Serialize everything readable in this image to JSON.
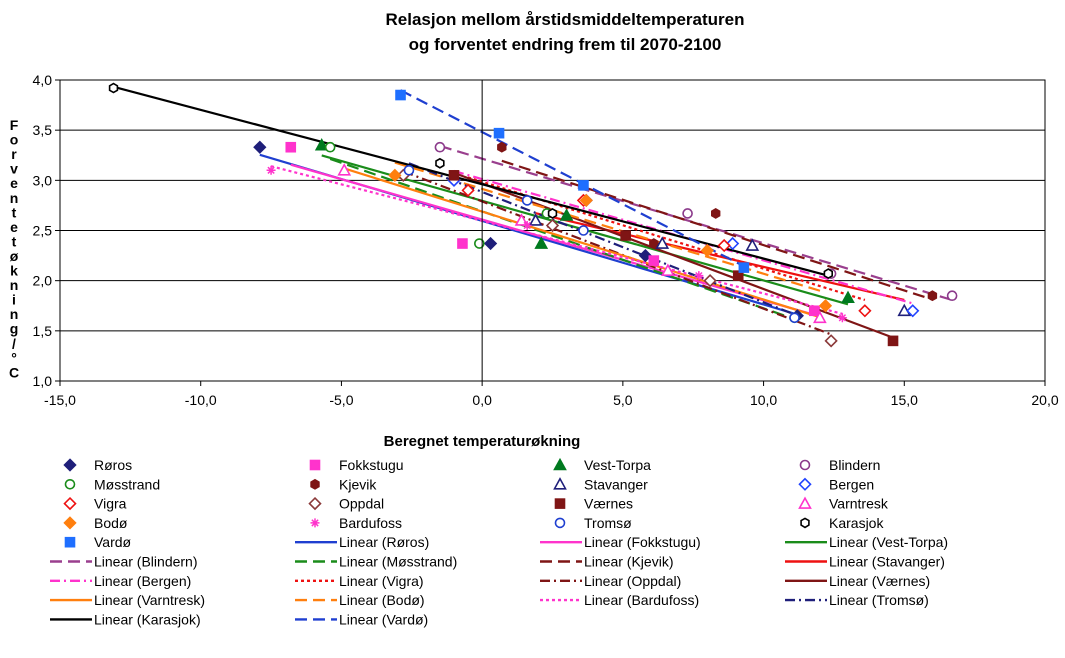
{
  "chart_data": {
    "type": "scatter",
    "title_lines": [
      "Relasjon mellom årstidsmiddeltemperaturen",
      "og forventet endring frem til 2070-2100"
    ],
    "xlabel": "Beregnet temperaturøkning",
    "ylabel": "Forventet økning/°C",
    "xlim": [
      -15,
      20
    ],
    "ylim": [
      1.0,
      4.0
    ],
    "x_ticks": [
      "-15,0",
      "-10,0",
      "-5,0",
      "0,0",
      "5,0",
      "10,0",
      "15,0",
      "20,0"
    ],
    "y_ticks": [
      "1,0",
      "1,5",
      "2,0",
      "2,5",
      "3,0",
      "3,5",
      "4,0"
    ],
    "grid": "horizontal",
    "legend_position": "bottom",
    "series": [
      {
        "name": "Røros",
        "color": "#1f1f7a",
        "marker": "diamond",
        "fill": true,
        "line": "solid",
        "trend": "Linear (Røros)",
        "trend_color": "#1f3fd0",
        "points": [
          [
            -7.9,
            3.33
          ],
          [
            0.3,
            2.37
          ],
          [
            5.8,
            2.25
          ],
          [
            11.2,
            1.65
          ]
        ]
      },
      {
        "name": "Fokkstugu",
        "color": "#ff33cc",
        "marker": "square",
        "fill": true,
        "line": "solid",
        "trend": "Linear (Fokkstugu)",
        "trend_color": "#ff33cc",
        "points": [
          [
            -6.8,
            3.33
          ],
          [
            -0.7,
            2.37
          ],
          [
            6.1,
            2.2
          ],
          [
            11.8,
            1.7
          ]
        ]
      },
      {
        "name": "Vest-Torpa",
        "color": "#007a1f",
        "marker": "triangle",
        "fill": true,
        "line": "solid",
        "trend": "Linear (Vest-Torpa)",
        "trend_color": "#1a8c1a",
        "points": [
          [
            -5.7,
            3.35
          ],
          [
            2.1,
            2.37
          ],
          [
            3.0,
            2.65
          ],
          [
            13.0,
            1.83
          ]
        ]
      },
      {
        "name": "Blindern",
        "color": "#8b3a8b",
        "marker": "circle",
        "fill": false,
        "line": "dash",
        "trend": "Linear (Blindern)",
        "trend_color": "#9a3f8e",
        "points": [
          [
            -1.5,
            3.33
          ],
          [
            7.3,
            2.67
          ],
          [
            12.4,
            2.07
          ],
          [
            16.7,
            1.85
          ]
        ]
      },
      {
        "name": "Møsstrand",
        "color": "#1a8c1a",
        "marker": "circle",
        "fill": false,
        "line": "dash",
        "trend": "Linear (Møsstrand)",
        "trend_color": "#1a8c1a",
        "points": [
          [
            -5.4,
            3.33
          ],
          [
            -0.1,
            2.37
          ],
          [
            2.3,
            2.67
          ],
          [
            11.1,
            1.63
          ]
        ]
      },
      {
        "name": "Kjevik",
        "color": "#7f1515",
        "marker": "hexagon",
        "fill": true,
        "line": "dash",
        "trend": "Linear (Kjevik)",
        "trend_color": "#7f1515",
        "points": [
          [
            0.7,
            3.33
          ],
          [
            6.1,
            2.37
          ],
          [
            8.3,
            2.67
          ],
          [
            16.0,
            1.85
          ]
        ]
      },
      {
        "name": "Stavanger",
        "color": "#1f1f7a",
        "marker": "triangle",
        "fill": false,
        "line": "solid",
        "trend": "Linear (Stavanger)",
        "trend_color": "#ee1111",
        "points": [
          [
            1.9,
            2.6
          ],
          [
            6.4,
            2.37
          ],
          [
            9.6,
            2.35
          ],
          [
            15.0,
            1.7
          ]
        ]
      },
      {
        "name": "Bergen",
        "color": "#2244ff",
        "marker": "diamond",
        "fill": false,
        "line": "dashdot",
        "trend": "Linear (Bergen)",
        "trend_color": "#ff33cc",
        "points": [
          [
            -1.0,
            3.0
          ],
          [
            3.7,
            2.8
          ],
          [
            8.9,
            2.37
          ],
          [
            15.3,
            1.7
          ]
        ]
      },
      {
        "name": "Vigra",
        "color": "#ee1111",
        "marker": "diamond",
        "fill": false,
        "line": "dot",
        "trend": "Linear (Vigra)",
        "trend_color": "#ee1111",
        "points": [
          [
            -0.5,
            2.9
          ],
          [
            3.6,
            2.8
          ],
          [
            8.6,
            2.35
          ],
          [
            13.6,
            1.7
          ]
        ]
      },
      {
        "name": "Oppdal",
        "color": "#8b3a3a",
        "marker": "diamond",
        "fill": false,
        "line": "dashdot",
        "trend": "Linear (Oppdal)",
        "trend_color": "#7f1515",
        "points": [
          [
            -2.8,
            3.05
          ],
          [
            2.5,
            2.55
          ],
          [
            8.1,
            2.0
          ],
          [
            12.4,
            1.4
          ]
        ]
      },
      {
        "name": "Værnes",
        "color": "#7f1515",
        "marker": "square",
        "fill": true,
        "line": "solid",
        "trend": "Linear (Værnes)",
        "trend_color": "#7f1515",
        "points": [
          [
            -1.0,
            3.05
          ],
          [
            5.1,
            2.45
          ],
          [
            9.1,
            2.05
          ],
          [
            14.6,
            1.4
          ]
        ]
      },
      {
        "name": "Varntresk",
        "color": "#ff33cc",
        "marker": "triangle",
        "fill": false,
        "line": "solid",
        "trend": "Linear (Varntresk)",
        "trend_color": "#ff7f0e",
        "points": [
          [
            -4.9,
            3.1
          ],
          [
            1.4,
            2.6
          ],
          [
            6.6,
            2.1
          ],
          [
            12.0,
            1.63
          ]
        ]
      },
      {
        "name": "Bodø",
        "color": "#ff7f0e",
        "marker": "diamond",
        "fill": true,
        "line": "dash",
        "trend": "Linear (Bodø)",
        "trend_color": "#ff7f0e",
        "points": [
          [
            -3.1,
            3.05
          ],
          [
            3.7,
            2.8
          ],
          [
            8.0,
            2.3
          ],
          [
            12.2,
            1.75
          ]
        ]
      },
      {
        "name": "Bardufoss",
        "color": "#ff33cc",
        "marker": "star",
        "fill": false,
        "line": "dot",
        "trend": "Linear (Bardufoss)",
        "trend_color": "#ff33cc",
        "points": [
          [
            -7.5,
            3.1
          ],
          [
            1.6,
            2.55
          ],
          [
            7.7,
            2.05
          ],
          [
            12.8,
            1.63
          ]
        ]
      },
      {
        "name": "Tromsø",
        "color": "#1f3fd0",
        "marker": "circle",
        "fill": false,
        "line": "dashdot",
        "trend": "Linear (Tromsø)",
        "trend_color": "#1f1f7a",
        "points": [
          [
            -2.6,
            3.1
          ],
          [
            1.6,
            2.8
          ],
          [
            3.6,
            2.5
          ],
          [
            11.1,
            1.63
          ]
        ]
      },
      {
        "name": "Karasjok",
        "color": "#000000",
        "marker": "hexagon",
        "fill": false,
        "line": "solid",
        "trend": "Linear (Karasjok)",
        "trend_color": "#000000",
        "points": [
          [
            -13.1,
            3.92
          ],
          [
            -1.5,
            3.17
          ],
          [
            2.5,
            2.67
          ],
          [
            12.3,
            2.07
          ]
        ]
      },
      {
        "name": "Vardø",
        "color": "#1f6fff",
        "marker": "square",
        "fill": true,
        "line": "dash",
        "trend": "Linear (Vardø)",
        "trend_color": "#1f3fd0",
        "points": [
          [
            -2.9,
            3.85
          ],
          [
            0.6,
            3.47
          ],
          [
            3.6,
            2.95
          ],
          [
            9.3,
            2.13
          ]
        ]
      }
    ]
  }
}
